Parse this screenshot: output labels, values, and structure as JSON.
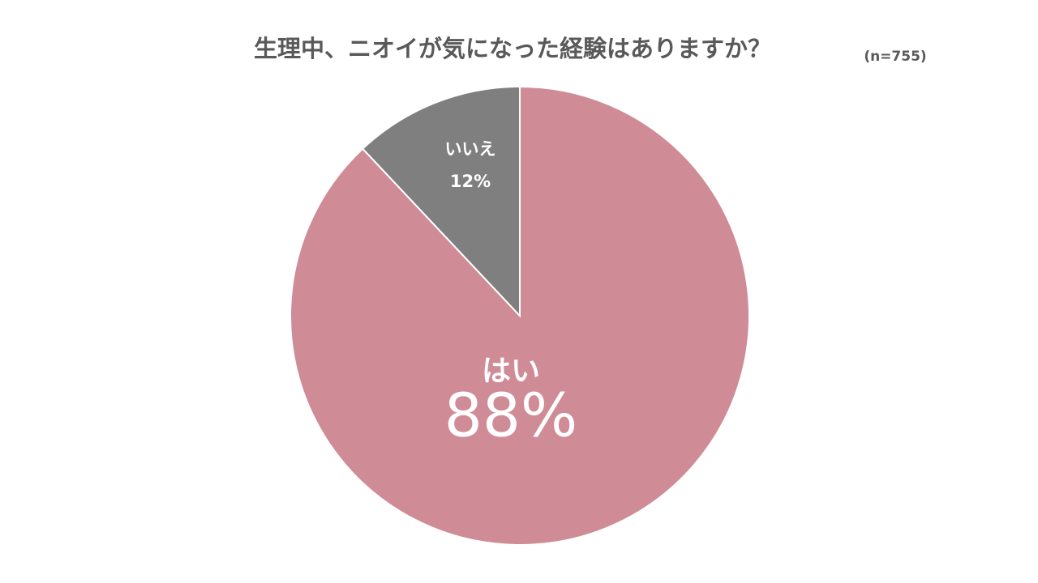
{
  "chart_data": {
    "type": "pie",
    "title": "生理中、ニオイが気になった経験はありますか？",
    "subtitle": "(n=755)",
    "categories": [
      "はい",
      "いいえ"
    ],
    "values": [
      88,
      12
    ],
    "value_labels": [
      "88%",
      "12%"
    ],
    "colors": [
      "#cf8c96",
      "#7f7f7f"
    ]
  }
}
